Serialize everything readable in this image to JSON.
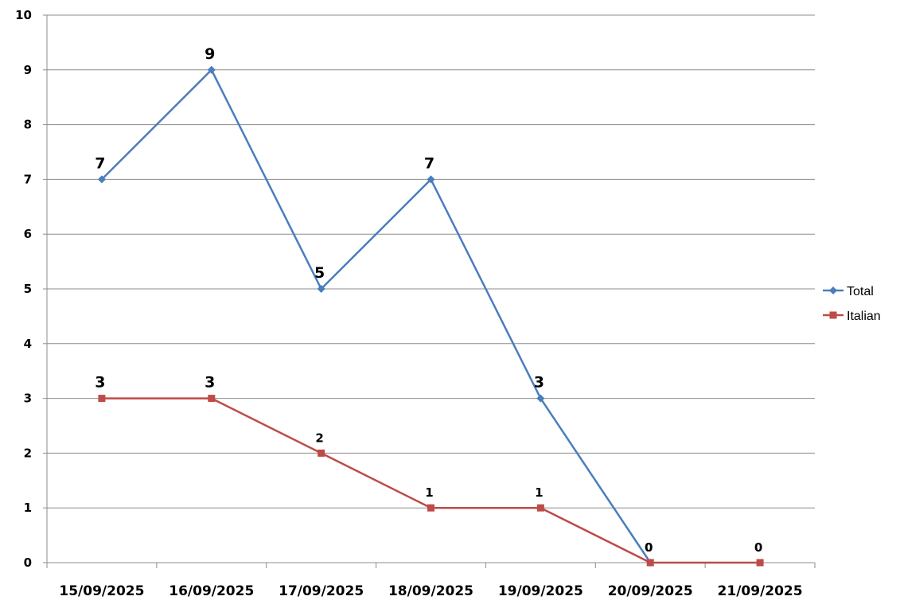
{
  "chart_data": {
    "type": "line",
    "categories": [
      "15/09/2025",
      "16/09/2025",
      "17/09/2025",
      "18/09/2025",
      "19/09/2025",
      "20/09/2025",
      "21/09/2025"
    ],
    "series": [
      {
        "name": "Total",
        "values": [
          7,
          9,
          5,
          7,
          3,
          0,
          null
        ],
        "color": "#4a7ebb",
        "marker": "diamond"
      },
      {
        "name": "Italian",
        "values": [
          3,
          3,
          2,
          1,
          1,
          0,
          0
        ],
        "color": "#be4b48",
        "marker": "square"
      }
    ],
    "ylim": [
      0,
      10
    ],
    "yticks": [
      "0",
      "1",
      "2",
      "3",
      "4",
      "5",
      "6",
      "7",
      "8",
      "9",
      "10"
    ],
    "grid": true,
    "legend_position": "right",
    "data_labels": true
  }
}
